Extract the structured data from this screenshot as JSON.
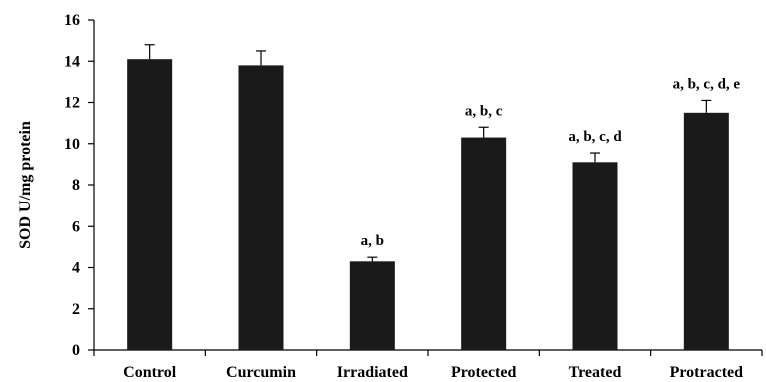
{
  "chart_data": {
    "type": "bar",
    "categories": [
      "Control",
      "Curcumin",
      "Irradiated",
      "Protected",
      "Treated",
      "Protracted"
    ],
    "values": [
      14.1,
      13.8,
      4.3,
      10.3,
      9.1,
      11.5
    ],
    "errors": [
      0.7,
      0.7,
      0.2,
      0.5,
      0.45,
      0.6
    ],
    "annotations": [
      "",
      "",
      "a, b",
      "a, b, c",
      "a, b, c, d",
      "a, b, c, d, e"
    ],
    "title": "",
    "xlabel": "",
    "ylabel": "SOD U/mg protein",
    "ylim": [
      0,
      16
    ],
    "yticks": [
      0,
      2,
      4,
      6,
      8,
      10,
      12,
      14,
      16
    ],
    "grid": false,
    "legend": "none",
    "bar_color": "#1a1a1a",
    "error_bar": "upper cap only"
  }
}
